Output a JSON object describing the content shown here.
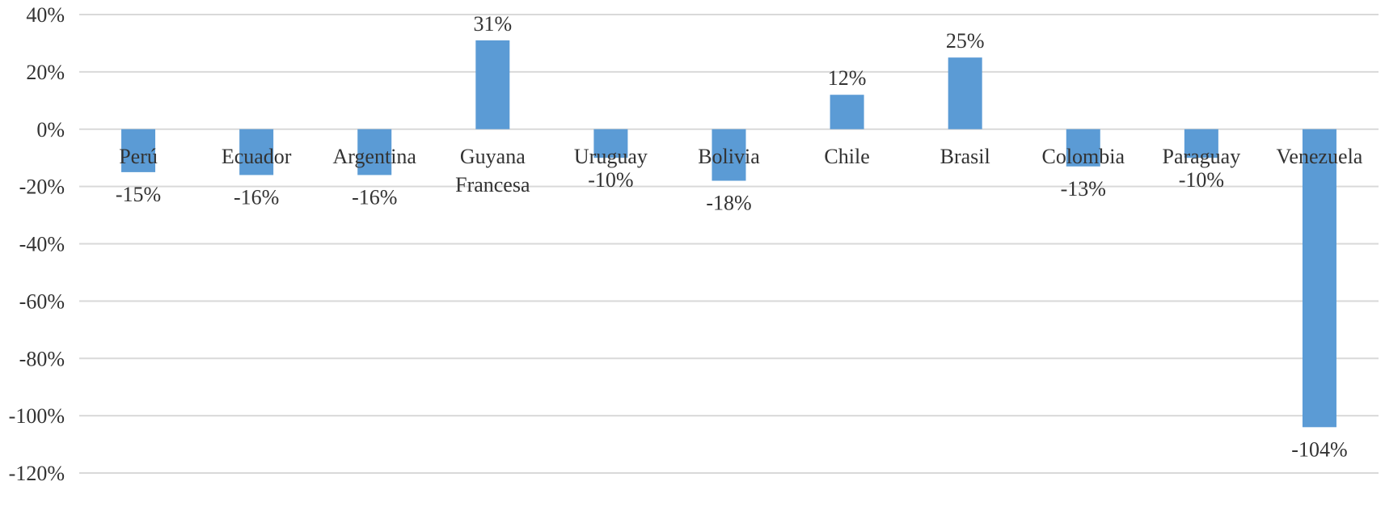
{
  "chart_data": {
    "type": "bar",
    "categories": [
      "Perú",
      "Ecuador",
      "Argentina",
      "Guyana Francesa",
      "Uruguay",
      "Bolivia",
      "Chile",
      "Brasil",
      "Colombia",
      "Paraguay",
      "Venezuela"
    ],
    "category_label_lines": [
      [
        "Perú"
      ],
      [
        "Ecuador"
      ],
      [
        "Argentina"
      ],
      [
        "Guyana",
        "Francesa"
      ],
      [
        "Uruguay"
      ],
      [
        "Bolivia"
      ],
      [
        "Chile"
      ],
      [
        "Brasil"
      ],
      [
        "Colombia"
      ],
      [
        "Paraguay"
      ],
      [
        "Venezuela"
      ]
    ],
    "values": [
      -15,
      -16,
      -16,
      31,
      -10,
      -18,
      12,
      25,
      -13,
      -10,
      -104
    ],
    "data_labels": [
      "-15%",
      "-16%",
      "-16%",
      "31%",
      "-10%",
      "-18%",
      "12%",
      "25%",
      "-13%",
      "-10%",
      "-104%"
    ],
    "ylim": [
      -120,
      40
    ],
    "yticks": [
      40,
      20,
      0,
      -20,
      -40,
      -60,
      -80,
      -100,
      -120
    ],
    "ytick_labels": [
      "40%",
      "20%",
      "0%",
      "-20%",
      "-40%",
      "-60%",
      "-80%",
      "-100%",
      "-120%"
    ],
    "grid": true,
    "legend": "none",
    "title": "",
    "xlabel": "",
    "ylabel": "",
    "colors": {
      "bar": "#5B9BD5",
      "grid": "#D9D9D9",
      "text": "#333333"
    }
  }
}
